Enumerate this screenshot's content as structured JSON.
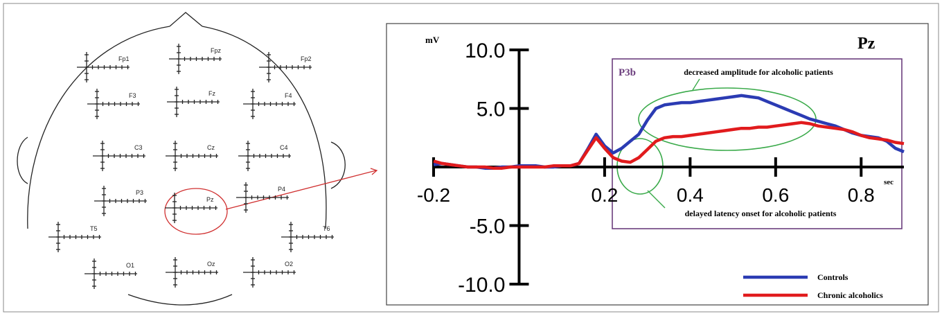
{
  "electrodes": [
    "Fp1",
    "Fpz",
    "Fp2",
    "F3",
    "Fz",
    "F4",
    "C3",
    "Cz",
    "C4",
    "P3",
    "Pz",
    "P4",
    "T5",
    "T6",
    "O1",
    "Oz",
    "O2"
  ],
  "chart_data": {
    "type": "line",
    "title": "Pz",
    "y_label": "mV",
    "x_label": "sec",
    "annotations": [
      "P3b",
      "decreased amplitude for alcoholic patients",
      "delayed latency onset for alcoholic patients"
    ],
    "x": [
      -0.2,
      -0.18,
      -0.16,
      -0.14,
      -0.12,
      -0.1,
      -0.08,
      -0.06,
      -0.04,
      -0.02,
      0,
      0.02,
      0.04,
      0.06,
      0.08,
      0.1,
      0.12,
      0.14,
      0.16,
      0.18,
      0.2,
      0.22,
      0.24,
      0.26,
      0.28,
      0.3,
      0.32,
      0.34,
      0.36,
      0.38,
      0.4,
      0.42,
      0.44,
      0.46,
      0.48,
      0.5,
      0.52,
      0.54,
      0.56,
      0.58,
      0.6,
      0.62,
      0.64,
      0.66,
      0.68,
      0.7,
      0.72,
      0.74,
      0.76,
      0.78,
      0.8,
      0.82,
      0.84,
      0.86,
      0.88,
      0.9
    ],
    "series": [
      {
        "name": "Controls",
        "color": "#2b3bb3",
        "values": [
          0.2,
          0.3,
          0.2,
          0.1,
          0,
          0,
          -0.1,
          -0.1,
          0,
          0,
          0.1,
          0.1,
          0.1,
          0,
          0,
          0.1,
          0.1,
          0.3,
          1.5,
          2.8,
          1.8,
          1.2,
          1.6,
          2.2,
          2.8,
          4.0,
          5.0,
          5.3,
          5.4,
          5.5,
          5.5,
          5.6,
          5.7,
          5.8,
          5.9,
          6.0,
          6.1,
          6.0,
          5.9,
          5.6,
          5.3,
          5.0,
          4.7,
          4.4,
          4.1,
          3.9,
          3.7,
          3.5,
          3.2,
          2.9,
          2.7,
          2.6,
          2.5,
          2.2,
          1.6,
          1.3
        ]
      },
      {
        "name": "Chronic alcoholics",
        "color": "#e11b1d",
        "values": [
          0.5,
          0.3,
          0.2,
          0.1,
          0,
          0,
          0,
          -0.1,
          -0.1,
          0,
          0,
          0,
          0,
          0,
          0.1,
          0.1,
          0.1,
          0.3,
          1.4,
          2.5,
          1.6,
          0.8,
          0.5,
          0.4,
          0.8,
          1.5,
          2.2,
          2.5,
          2.6,
          2.6,
          2.7,
          2.8,
          2.9,
          3.0,
          3.1,
          3.2,
          3.3,
          3.3,
          3.4,
          3.4,
          3.5,
          3.6,
          3.7,
          3.8,
          3.7,
          3.5,
          3.4,
          3.3,
          3.2,
          3.0,
          2.7,
          2.5,
          2.4,
          2.3,
          2.1,
          2.0
        ]
      }
    ],
    "xlim": [
      -0.2,
      0.9
    ],
    "ylim": [
      -10,
      10
    ],
    "xticks": [
      -0.2,
      0.2,
      0.4,
      0.6,
      0.8
    ],
    "yticks": [
      {
        "value": -10,
        "label": "-10.0"
      },
      {
        "value": -5,
        "label": "-5.0"
      },
      {
        "value": 5,
        "label": "5.0"
      },
      {
        "value": 10,
        "label": "10.0"
      }
    ]
  }
}
